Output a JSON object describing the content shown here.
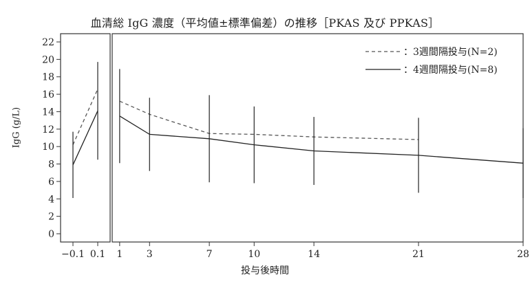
{
  "chart_data": {
    "type": "line",
    "title": "血清総 IgG 濃度（平均値±標準偏差）の推移［PKAS 及び PPKAS］",
    "xlabel": "投与後時間",
    "ylabel": "IgG (g/L)",
    "ylim": [
      0,
      22
    ],
    "y_ticks": [
      0,
      2,
      4,
      6,
      8,
      10,
      12,
      14,
      16,
      18,
      20,
      22
    ],
    "panels": [
      {
        "x_ticks": [
          "-0.1",
          "0.1"
        ],
        "xlim": [
          -0.2,
          0.2
        ]
      },
      {
        "x_ticks": [
          "1",
          "3",
          "7",
          "10",
          "14",
          "21",
          "28"
        ],
        "xlim": [
          0.5,
          28
        ]
      }
    ],
    "legend_position": "top-right",
    "series": [
      {
        "name": "3週間隔投与(N=2)",
        "style": "dashed",
        "color": "#555555",
        "panel1": {
          "x": [
            -0.1,
            0.1
          ],
          "y": [
            10.2,
            16.6
          ]
        },
        "panel2": {
          "x": [
            1,
            3,
            7,
            10,
            14,
            21
          ],
          "y": [
            15.2,
            13.7,
            11.5,
            11.4,
            11.1,
            10.8
          ]
        }
      },
      {
        "name": "4週間隔投与(N=8)",
        "style": "solid",
        "color": "#222222",
        "panel1": {
          "x": [
            -0.1,
            0.1
          ],
          "y": [
            7.9,
            14.1
          ],
          "err": [
            3.8,
            5.6
          ]
        },
        "panel2": {
          "x": [
            1,
            3,
            7,
            10,
            14,
            21,
            28
          ],
          "y": [
            13.5,
            11.4,
            10.9,
            10.2,
            9.5,
            9.0,
            8.1
          ],
          "err": [
            5.4,
            4.2,
            5.0,
            4.4,
            3.9,
            4.3,
            4.0
          ]
        }
      }
    ]
  }
}
